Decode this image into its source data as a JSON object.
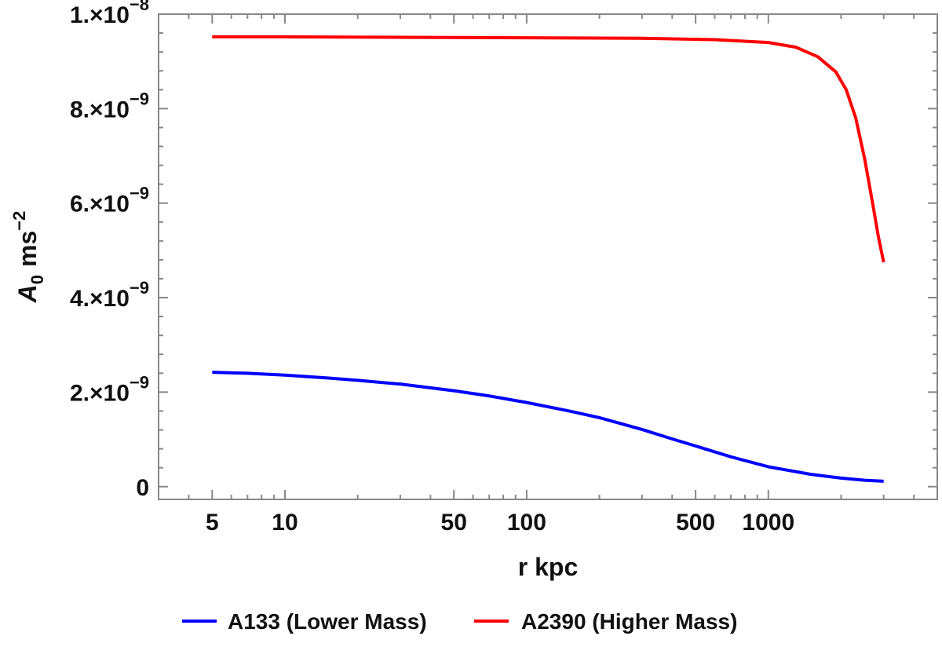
{
  "chart_data": {
    "type": "line",
    "xscale": "log",
    "xlabel": "r kpc",
    "ylabel_main": "A",
    "ylabel_sub": "0",
    "ylabel_unit": "ms",
    "ylabel_unit_sup": "−2",
    "xlim": [
      3,
      5000
    ],
    "ylim": [
      -2.7e-10,
      1e-08
    ],
    "x_ticks": [
      {
        "value": 5,
        "label": "5"
      },
      {
        "value": 10,
        "label": "10"
      },
      {
        "value": 50,
        "label": "50"
      },
      {
        "value": 100,
        "label": "100"
      },
      {
        "value": 500,
        "label": "500"
      },
      {
        "value": 1000,
        "label": "1000"
      }
    ],
    "y_ticks": [
      {
        "value": 0,
        "mant": "0",
        "exp": ""
      },
      {
        "value": 2e-09,
        "mant": "2.×10",
        "exp": "−9"
      },
      {
        "value": 4e-09,
        "mant": "4.×10",
        "exp": "−9"
      },
      {
        "value": 6e-09,
        "mant": "6.×10",
        "exp": "−9"
      },
      {
        "value": 8e-09,
        "mant": "8.×10",
        "exp": "−9"
      },
      {
        "value": 1e-08,
        "mant": "1.×10",
        "exp": "−8"
      }
    ],
    "legend_position": "bottom",
    "grid": false,
    "series": [
      {
        "name": "A133 (Lower Mass)",
        "color": "#0000ff",
        "x": [
          5,
          7,
          10,
          15,
          20,
          30,
          50,
          70,
          100,
          150,
          200,
          300,
          400,
          500,
          700,
          1000,
          1500,
          2000,
          2500,
          3000
        ],
        "y": [
          2.42e-09,
          2.4e-09,
          2.36e-09,
          2.3e-09,
          2.25e-09,
          2.17e-09,
          2.03e-09,
          1.92e-09,
          1.78e-09,
          1.6e-09,
          1.46e-09,
          1.21e-09,
          1.01e-09,
          8.6e-10,
          6.3e-10,
          4.2e-10,
          2.6e-10,
          1.8e-10,
          1.35e-10,
          1.15e-10
        ]
      },
      {
        "name": "A2390 (Higher Mass)",
        "color": "#ff0000",
        "x": [
          5,
          10,
          30,
          100,
          300,
          600,
          1000,
          1300,
          1600,
          1900,
          2100,
          2300,
          2500,
          2700,
          2850,
          3000
        ],
        "y": [
          9.52e-09,
          9.52e-09,
          9.51e-09,
          9.5e-09,
          9.49e-09,
          9.46e-09,
          9.4e-09,
          9.3e-09,
          9.1e-09,
          8.78e-09,
          8.4e-09,
          7.8e-09,
          6.95e-09,
          6e-09,
          5.3e-09,
          4.75e-09
        ]
      }
    ]
  }
}
